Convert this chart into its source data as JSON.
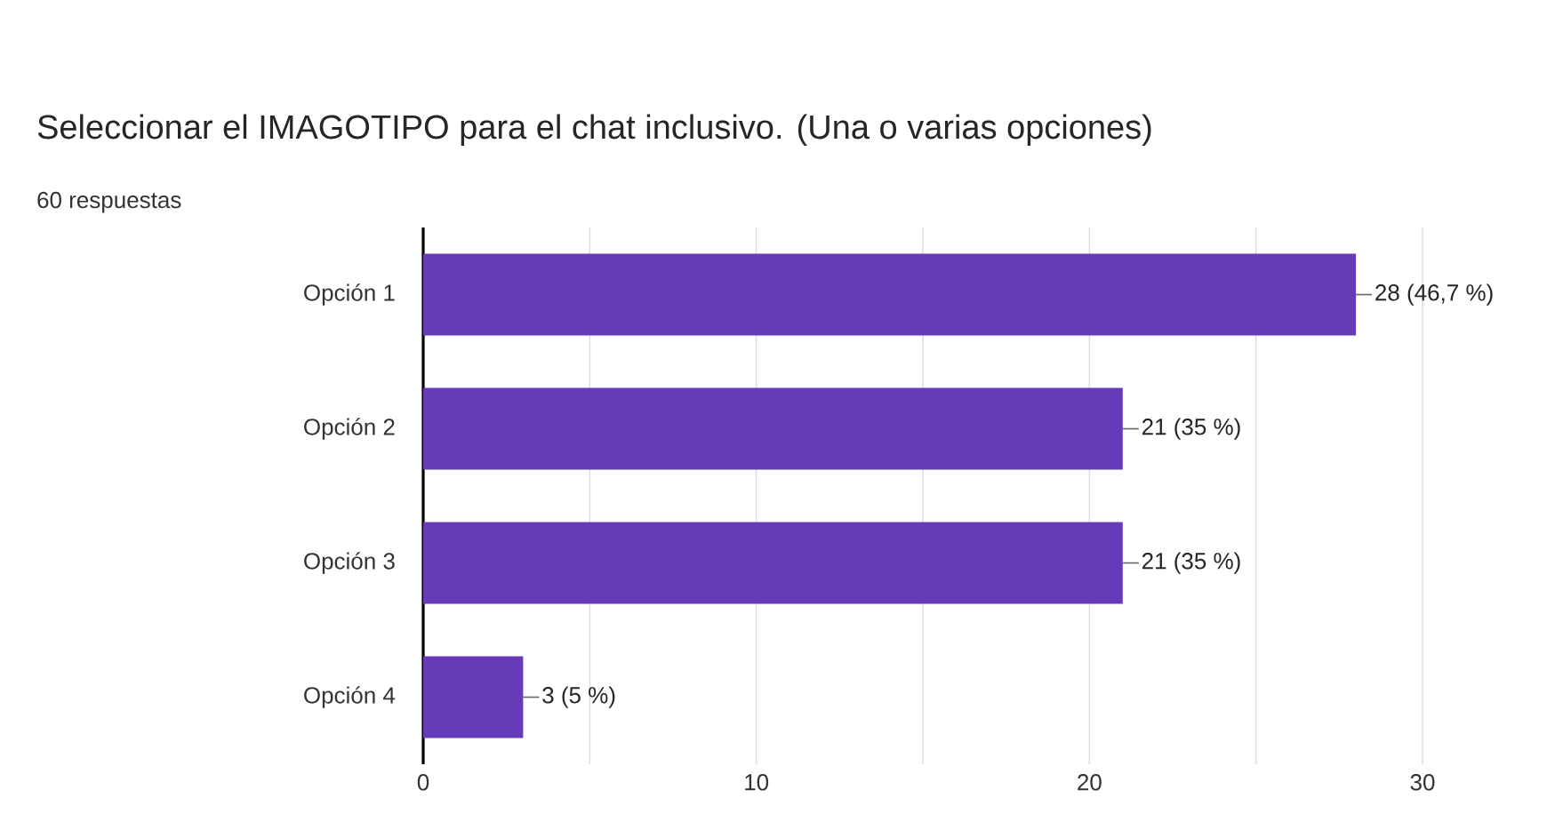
{
  "chart_data": {
    "type": "bar",
    "orientation": "horizontal",
    "title": "Seleccionar el IMAGOTIPO para el chat inclusivo. (Una o varias opciones)",
    "subtitle": "60 respuestas",
    "categories": [
      "Opción 1",
      "Opción 2",
      "Opción 3",
      "Opción 4"
    ],
    "values": [
      28,
      21,
      21,
      3
    ],
    "value_labels": [
      "28 (46,7 %)",
      "21 (35 %)",
      "21 (35 %)",
      "3 (5 %)"
    ],
    "color": "#673ab7",
    "xlim": [
      0,
      30
    ],
    "xticks": [
      0,
      {
        "value": 5,
        "label": null
      },
      10,
      {
        "value": 15,
        "label": null
      },
      20,
      {
        "value": 25,
        "label": null
      },
      30
    ],
    "grid": "x"
  }
}
